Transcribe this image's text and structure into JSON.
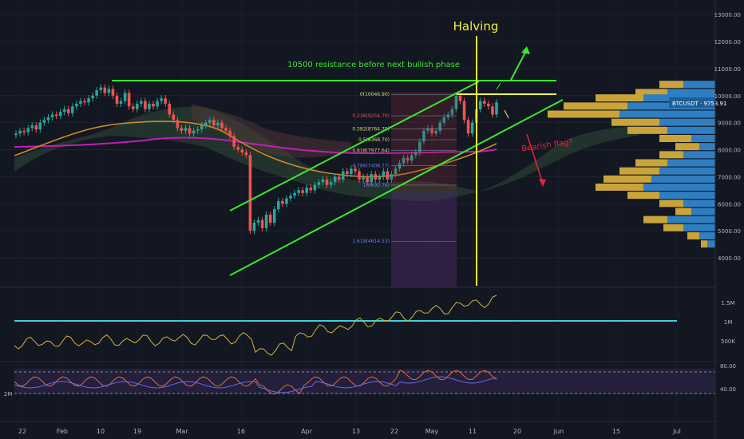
{
  "chart_data": [
    {
      "type": "candlestick",
      "symbol_label": "BTCUSDT · 9753.91",
      "price_axis_ticks": [
        "13000.00",
        "12000.00",
        "11000.00",
        "10000.00",
        "9000.00",
        "8000.00",
        "7000.00",
        "6000.00",
        "5000.00",
        "4000.00"
      ],
      "ylim": [
        3500,
        13300
      ],
      "time_axis_ticks": [
        "22",
        "Feb",
        "10",
        "19",
        "Mar",
        "16",
        "Apr",
        "13",
        "22",
        "May",
        "11",
        "20",
        "Jun",
        "15",
        "Jul"
      ],
      "annotations": {
        "halving": "Halving",
        "resistance": "10500 resistance before next bullish phase",
        "bearish_flag": "Bearish flag?"
      },
      "fib_levels": [
        {
          "label": "0(10046.90)",
          "value": 10046.9
        },
        {
          "label": "0.236(9254.79)",
          "value": 9254.79
        },
        {
          "label": "0.382(8764.79)",
          "value": 8764.79
        },
        {
          "label": "0.5(8368.70)",
          "value": 8368.7
        },
        {
          "label": "0.618(7977.64)",
          "value": 7977.64
        },
        {
          "label": "0.786(7408.77)",
          "value": 7408.77
        },
        {
          "label": "1(6690.76)",
          "value": 6690.76
        },
        {
          "label": "1.618(4614.53)",
          "value": 4614.53
        }
      ],
      "close_series": [
        8600,
        8700,
        8650,
        8800,
        8900,
        8750,
        9000,
        9100,
        9200,
        9300,
        9250,
        9400,
        9500,
        9350,
        9600,
        9700,
        9800,
        9750,
        9900,
        10000,
        10200,
        10300,
        10100,
        10250,
        10000,
        9700,
        9800,
        10100,
        9600,
        9500,
        9700,
        9800,
        9500,
        9700,
        9600,
        9800,
        9900,
        9700,
        9300,
        9100,
        8800,
        8700,
        8800,
        8600,
        8700,
        8750,
        8900,
        9000,
        9100,
        8900,
        9000,
        8800,
        8700,
        8500,
        8100,
        8000,
        7900,
        7800,
        5000,
        5300,
        5400,
        5100,
        5600,
        5300,
        5800,
        6100,
        6000,
        6200,
        6300,
        6400,
        6500,
        6400,
        6600,
        6500,
        6700,
        6800,
        6900,
        6700,
        6800,
        7000,
        6900,
        7200,
        7100,
        7300,
        7200,
        6900,
        7000,
        6800,
        7100,
        6900,
        7000,
        7200,
        6900,
        7100,
        7300,
        7500,
        7700,
        7600,
        7800,
        7900,
        8300,
        8700,
        8800,
        8600,
        8700,
        9000,
        9200,
        9300,
        9500,
        10000,
        9800,
        9100,
        8600,
        9000,
        9500,
        9800,
        9700,
        9600,
        9300,
        9754
      ],
      "volume_axis_ticks": [
        "1.5M",
        "1M",
        "500K"
      ],
      "rsi_axis_ticks": [
        "80.00",
        "40.00"
      ],
      "left_axis_label": "2M"
    }
  ]
}
